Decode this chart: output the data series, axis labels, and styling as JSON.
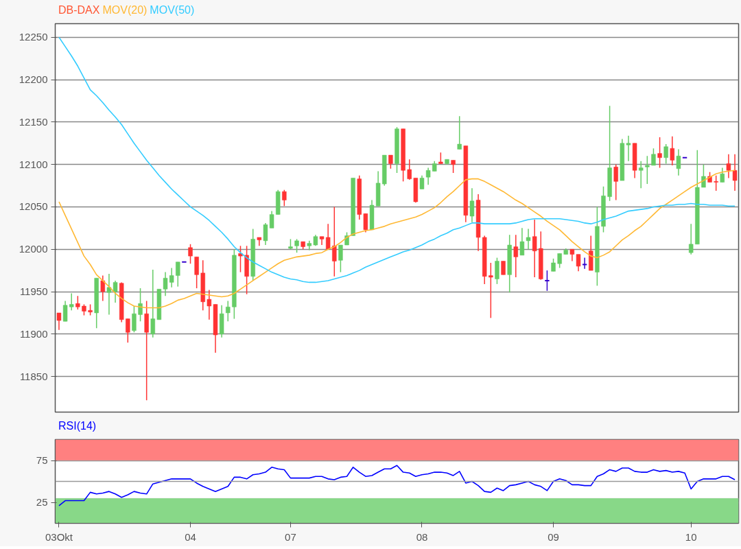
{
  "chart_data": [
    {
      "type": "candlestick",
      "ylim": [
        11808,
        12266
      ],
      "yticks": [
        11850,
        11900,
        11950,
        12000,
        12050,
        12100,
        12150,
        12200,
        12250
      ],
      "grid": "y",
      "tick_labels": "y",
      "legend": "top left",
      "categories": [
        null,
        null,
        null,
        null,
        null,
        null,
        null,
        null,
        null,
        null,
        null,
        null,
        null,
        null,
        null,
        null,
        null,
        null,
        null,
        null,
        null,
        null,
        null,
        null,
        null,
        null,
        null,
        null,
        null,
        null,
        null,
        null,
        null,
        null,
        null,
        null,
        null,
        null,
        null,
        null,
        null,
        null,
        null,
        null,
        null,
        null,
        null,
        null,
        null,
        null,
        null,
        null,
        null,
        null,
        null,
        null,
        null,
        null,
        null,
        null,
        null,
        null,
        null,
        null,
        null,
        null,
        null,
        null,
        null,
        null,
        null,
        null,
        null,
        null,
        null,
        null,
        null,
        null,
        null,
        null,
        null,
        null,
        null,
        null,
        null,
        null,
        null,
        null,
        null,
        null,
        null,
        null,
        null,
        null,
        null,
        null,
        null,
        null,
        null,
        null,
        null,
        null,
        null,
        null,
        null,
        null,
        null,
        null,
        null
      ],
      "series": [
        {
          "name": "DB-DAX",
          "type": "candlestick",
          "color": "#ff5533",
          "ohlc": [
            [
              11925,
              11925,
              11905,
              11916
            ],
            [
              11915,
              11939,
              11915,
              11934
            ],
            [
              11932,
              11948,
              11928,
              11935
            ],
            [
              11936,
              11945,
              11929,
              11932
            ],
            [
              11933,
              11935,
              11922,
              11927
            ],
            [
              11928,
              11935,
              11922,
              11926
            ],
            [
              11925,
              11966,
              11907,
              11966
            ],
            [
              11963,
              11969,
              11939,
              11950
            ],
            [
              11949,
              11971,
              11923,
              11955
            ],
            [
              11950,
              11963,
              11937,
              11961
            ],
            [
              11960,
              11961,
              11914,
              11917
            ],
            [
              11918,
              11918,
              11890,
              11902
            ],
            [
              11904,
              11933,
              11902,
              11924
            ],
            [
              11923,
              11954,
              11915,
              11936
            ],
            [
              11924,
              11939,
              11822,
              11902
            ],
            [
              11900,
              11976,
              11896,
              11918
            ],
            [
              11917,
              11953,
              11917,
              11953
            ],
            [
              11953,
              11973,
              11945,
              11966
            ],
            [
              11961,
              11978,
              11955,
              11969
            ],
            [
              11969,
              11985,
              11956,
              11985
            ],
            [
              11985,
              11985,
              11985,
              11985
            ],
            [
              12002,
              12006,
              11983,
              11992
            ],
            [
              11991,
              11991,
              11954,
              11970
            ],
            [
              11972,
              11987,
              11928,
              11938
            ],
            [
              11941,
              11952,
              11917,
              11933
            ],
            [
              11935,
              11935,
              11878,
              11899
            ],
            [
              11900,
              11934,
              11896,
              11924
            ],
            [
              11925,
              11939,
              11915,
              11932
            ],
            [
              11932,
              12000,
              11918,
              11993
            ],
            [
              11995,
              12004,
              11973,
              11992
            ],
            [
              11993,
              12004,
              11947,
              11968
            ],
            [
              11968,
              12024,
              11963,
              12012
            ],
            [
              12014,
              12014,
              12004,
              12011
            ],
            [
              12010,
              12031,
              12005,
              12029
            ],
            [
              12025,
              12045,
              12025,
              12041
            ],
            [
              12041,
              12070,
              12041,
              12068
            ],
            [
              12068,
              12070,
              12051,
              12058
            ],
            [
              12001,
              12012,
              12000,
              12003
            ],
            [
              12004,
              12012,
              11996,
              12010
            ],
            [
              12009,
              12009,
              12000,
              12003
            ],
            [
              12004,
              12010,
              11999,
              12007
            ],
            [
              12005,
              12017,
              12004,
              12015
            ],
            [
              12015,
              12015,
              12005,
              12012
            ],
            [
              12014,
              12030,
              12000,
              12000
            ],
            [
              12004,
              12050,
              11968,
              11986
            ],
            [
              11987,
              12005,
              11973,
              12005
            ],
            [
              12005,
              12020,
              12005,
              12016
            ],
            [
              12016,
              12084,
              12016,
              12084
            ],
            [
              12083,
              12087,
              12035,
              12041
            ],
            [
              12042,
              12042,
              12020,
              12023
            ],
            [
              12023,
              12058,
              12023,
              12052
            ],
            [
              12051,
              12092,
              12051,
              12078
            ],
            [
              12077,
              12111,
              12075,
              12111
            ],
            [
              12111,
              12111,
              12095,
              12101
            ],
            [
              12101,
              12144,
              12090,
              12142
            ],
            [
              12142,
              12142,
              12080,
              12093
            ],
            [
              12094,
              12106,
              12082,
              12083
            ],
            [
              12084,
              12084,
              12055,
              12056
            ],
            [
              12071,
              12087,
              12071,
              12084
            ],
            [
              12085,
              12096,
              12076,
              12093
            ],
            [
              12092,
              12104,
              12092,
              12101
            ],
            [
              12103,
              12114,
              12101,
              12101
            ],
            [
              12101,
              12106,
              12100,
              12106
            ],
            [
              12105,
              12105,
              12090,
              12100
            ],
            [
              12118,
              12157,
              12118,
              12124
            ],
            [
              12122,
              12122,
              12032,
              12040
            ],
            [
              12039,
              12072,
              12032,
              12057
            ],
            [
              12058,
              12065,
              11998,
              12014
            ],
            [
              12014,
              12016,
              11959,
              11968
            ],
            [
              11969,
              11984,
              11919,
              11967
            ],
            [
              11965,
              11990,
              11959,
              11986
            ],
            [
              11986,
              11986,
              11970,
              11970
            ],
            [
              11970,
              12017,
              11949,
              12005
            ],
            [
              12003,
              12017,
              11967,
              11991
            ],
            [
              11993,
              12025,
              11993,
              12009
            ],
            [
              12010,
              12024,
              12000,
              12014
            ],
            [
              12015,
              12035,
              11967,
              11998
            ],
            [
              12001,
              12021,
              11964,
              11965
            ],
            [
              11963,
              11975,
              11951,
              11963
            ],
            [
              11974,
              11989,
              11974,
              11984
            ],
            [
              11983,
              11995,
              11978,
              11995
            ],
            [
              11994,
              12001,
              11994,
              11999
            ],
            [
              12000,
              12000,
              11986,
              11994
            ],
            [
              11994,
              11994,
              11974,
              11980
            ],
            [
              11982,
              11990,
              11977,
              11982
            ],
            [
              11998,
              12016,
              11975,
              11975
            ],
            [
              11973,
              12050,
              11957,
              12027
            ],
            [
              12027,
              12074,
              12020,
              12063
            ],
            [
              12062,
              12169,
              12057,
              12096
            ],
            [
              12097,
              12100,
              12058,
              12080
            ],
            [
              12081,
              12130,
              12081,
              12125
            ],
            [
              12123,
              12134,
              12104,
              12125
            ],
            [
              12125,
              12125,
              12084,
              12093
            ],
            [
              12093,
              12104,
              12072,
              12096
            ],
            [
              12097,
              12110,
              12077,
              12099
            ],
            [
              12099,
              12119,
              12099,
              12112
            ],
            [
              12113,
              12132,
              12096,
              12108
            ],
            [
              12108,
              12124,
              12101,
              12121
            ],
            [
              12119,
              12133,
              12099,
              12105
            ],
            [
              12095,
              12118,
              12087,
              12110
            ],
            [
              12108,
              12108,
              12108,
              12108
            ],
            [
              11996,
              12030,
              11994,
              12006
            ],
            [
              12006,
              12117,
              12006,
              12073
            ],
            [
              12073,
              12100,
              12073,
              12086
            ],
            [
              12086,
              12091,
              12079,
              12079
            ],
            [
              12080,
              12087,
              12069,
              12079
            ],
            [
              12079,
              12096,
              12079,
              12089
            ],
            [
              12101,
              12112,
              12084,
              12093
            ],
            [
              12093,
              12112,
              12069,
              12081
            ]
          ],
          "colors": [
            "#ff3333",
            "#66cc66",
            "#66cc66",
            "#ff3333",
            "#ff3333",
            "#ff3333",
            "#66cc66",
            "#ff3333",
            "#66cc66",
            "#66cc66",
            "#ff3333",
            "#ff3333",
            "#66cc66",
            "#66cc66",
            "#ff3333",
            "#66cc66",
            "#66cc66",
            "#66cc66",
            "#66cc66",
            "#66cc66",
            "#3300cc",
            "#ff3333",
            "#ff3333",
            "#ff3333",
            "#ff3333",
            "#ff3333",
            "#66cc66",
            "#66cc66",
            "#66cc66",
            "#ff3333",
            "#ff3333",
            "#66cc66",
            "#ff3333",
            "#66cc66",
            "#66cc66",
            "#66cc66",
            "#ff3333",
            "#66cc66",
            "#66cc66",
            "#ff3333",
            "#66cc66",
            "#66cc66",
            "#ff3333",
            "#ff3333",
            "#ff3333",
            "#66cc66",
            "#66cc66",
            "#66cc66",
            "#ff3333",
            "#ff3333",
            "#66cc66",
            "#66cc66",
            "#66cc66",
            "#ff3333",
            "#66cc66",
            "#ff3333",
            "#ff3333",
            "#ff3333",
            "#66cc66",
            "#66cc66",
            "#66cc66",
            "#ff3333",
            "#66cc66",
            "#ff3333",
            "#66cc66",
            "#ff3333",
            "#66cc66",
            "#ff3333",
            "#ff3333",
            "#ff3333",
            "#66cc66",
            "#ff3333",
            "#66cc66",
            "#ff3333",
            "#66cc66",
            "#66cc66",
            "#ff3333",
            "#ff3333",
            "#3300cc",
            "#66cc66",
            "#66cc66",
            "#66cc66",
            "#ff3333",
            "#ff3333",
            "#3300cc",
            "#ff3333",
            "#66cc66",
            "#66cc66",
            "#66cc66",
            "#ff3333",
            "#66cc66",
            "#66cc66",
            "#ff3333",
            "#66cc66",
            "#66cc66",
            "#66cc66",
            "#ff3333",
            "#66cc66",
            "#ff3333",
            "#66cc66",
            "#3300cc",
            "#66cc66",
            "#66cc66",
            "#66cc66",
            "#ff3333",
            "#ff3333",
            "#66cc66",
            "#ff3333",
            "#ff3333"
          ]
        },
        {
          "name": "MOV(20)",
          "type": "line",
          "color": "#ffb833",
          "values": [
            12056,
            12040,
            12024,
            12008,
            11992,
            11982,
            11970,
            11963,
            11956,
            11948,
            11942,
            11937,
            11933,
            11932,
            11931,
            11931,
            11931,
            11933,
            11936,
            11940,
            11942,
            11945,
            11948,
            11947,
            11946,
            11945,
            11944,
            11945,
            11948,
            11953,
            11958,
            11963,
            11968,
            11973,
            11978,
            11983,
            11987,
            11989,
            11991,
            11992,
            11993,
            11995,
            11996,
            12000,
            12003,
            12008,
            12014,
            12018,
            12020,
            12022,
            12023,
            12025,
            12027,
            12030,
            12032,
            12034,
            12036,
            12038,
            12041,
            12045,
            12049,
            12055,
            12062,
            12068,
            12075,
            12082,
            12083,
            12083,
            12080,
            12076,
            12072,
            12068,
            12063,
            12058,
            12054,
            12049,
            12044,
            12039,
            12033,
            12028,
            12023,
            12016,
            12009,
            12003,
            11997,
            11992,
            11990,
            11993,
            11997,
            12004,
            12011,
            12016,
            12022,
            12027,
            12034,
            12041,
            12048,
            12053,
            12058,
            12063,
            12068,
            12073,
            12077,
            12081,
            12085,
            12089,
            12091,
            12092,
            12093
          ]
        },
        {
          "name": "MOV(50)",
          "type": "line",
          "color": "#33ccff",
          "values": [
            12250,
            12239,
            12228,
            12216,
            12202,
            12188,
            12181,
            12173,
            12164,
            12156,
            12147,
            12136,
            12125,
            12115,
            12105,
            12096,
            12087,
            12079,
            12071,
            12064,
            12057,
            12050,
            12045,
            12040,
            12034,
            12027,
            12020,
            12012,
            12003,
            11996,
            11990,
            11985,
            11981,
            11977,
            11973,
            11970,
            11967,
            11965,
            11964,
            11962,
            11961,
            11961,
            11962,
            11963,
            11965,
            11967,
            11969,
            11972,
            11975,
            11979,
            11982,
            11985,
            11988,
            11991,
            11994,
            11997,
            11999,
            12002,
            12005,
            12009,
            12012,
            12016,
            12019,
            12023,
            12025,
            12028,
            12031,
            12031,
            12030,
            12030,
            12030,
            12030,
            12030,
            12031,
            12033,
            12035,
            12036,
            12036,
            12036,
            12036,
            12036,
            12035,
            12034,
            12033,
            12031,
            12030,
            12032,
            12035,
            12037,
            12039,
            12042,
            12045,
            12046,
            12047,
            12048,
            12050,
            12051,
            12052,
            12052,
            12053,
            12053,
            12054,
            12053,
            12053,
            12052,
            12052,
            12052,
            12051,
            12051
          ]
        }
      ]
    },
    {
      "type": "line",
      "ylim": [
        0,
        100
      ],
      "yticks": [
        25,
        75
      ],
      "grid": "y",
      "legend": "top left",
      "categories": [
        "03Okt",
        null,
        null,
        null,
        null,
        null,
        null,
        null,
        null,
        null,
        null,
        null,
        null,
        null,
        null,
        null,
        null,
        null,
        null,
        null,
        null,
        "04",
        null,
        null,
        null,
        null,
        null,
        null,
        null,
        null,
        null,
        null,
        null,
        null,
        null,
        null,
        null,
        "07",
        null,
        null,
        null,
        null,
        null,
        null,
        null,
        null,
        null,
        null,
        null,
        null,
        null,
        null,
        null,
        null,
        null,
        null,
        null,
        null,
        "08",
        null,
        null,
        null,
        null,
        null,
        null,
        null,
        null,
        null,
        null,
        null,
        null,
        null,
        null,
        null,
        null,
        null,
        null,
        null,
        null,
        "09",
        null,
        null,
        null,
        null,
        null,
        null,
        null,
        null,
        null,
        null,
        null,
        null,
        null,
        null,
        null,
        null,
        null,
        null,
        null,
        null,
        null,
        "10",
        null,
        null,
        null,
        null,
        null,
        null,
        null
      ],
      "bands": [
        {
          "axis": "y",
          "from": 75,
          "to": 100,
          "color": "#ff8080"
        },
        {
          "axis": "y",
          "from": 0,
          "to": 30,
          "color": "#88d888"
        }
      ],
      "ref_lines": [
        {
          "axis": "y",
          "value": 50,
          "color": "#999999"
        }
      ],
      "series": [
        {
          "name": "RSI(14)",
          "color": "#0000ff",
          "values": [
            21,
            27,
            27,
            27,
            27,
            37,
            35,
            36,
            38,
            35,
            31,
            34,
            38,
            36,
            35,
            47,
            49,
            51,
            53,
            53,
            53,
            53,
            48,
            44,
            41,
            38,
            41,
            44,
            55,
            55,
            53,
            58,
            59,
            61,
            67,
            65,
            64,
            54,
            54,
            54,
            54,
            56,
            56,
            53,
            52,
            55,
            56,
            67,
            61,
            56,
            57,
            61,
            65,
            65,
            69,
            61,
            60,
            56,
            58,
            59,
            61,
            61,
            60,
            57,
            62,
            48,
            50,
            45,
            38,
            37,
            42,
            39,
            45,
            46,
            48,
            50,
            46,
            44,
            39,
            50,
            53,
            51,
            46,
            46,
            45,
            45,
            56,
            59,
            64,
            62,
            66,
            66,
            62,
            61,
            61,
            64,
            62,
            63,
            61,
            62,
            60,
            41,
            50,
            53,
            53,
            53,
            56,
            56,
            52
          ]
        }
      ]
    }
  ]
}
